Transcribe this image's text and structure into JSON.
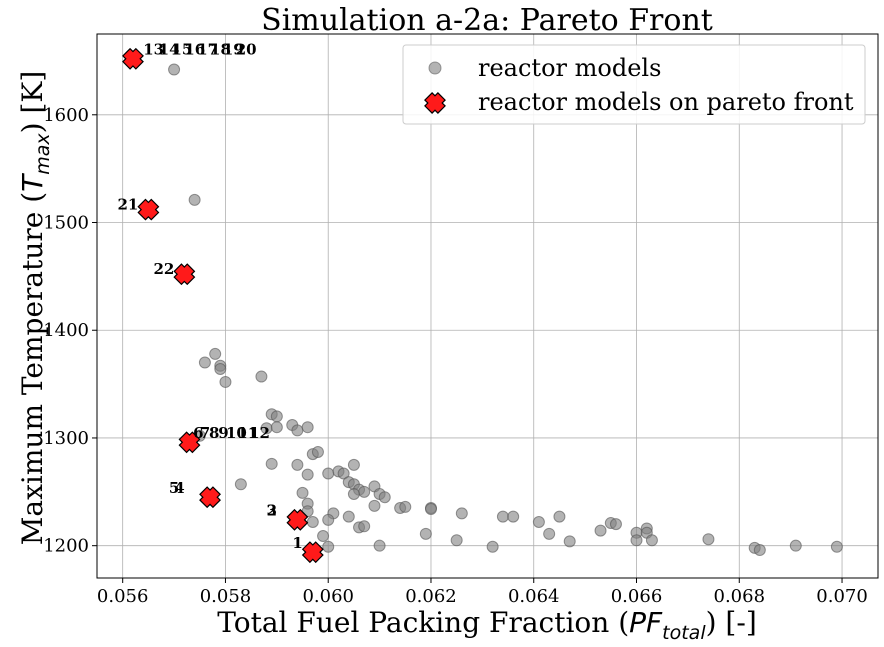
{
  "chart_data": {
    "type": "scatter",
    "title": "Simulation a-2a: Pareto Front",
    "xlabel": "Total Fuel Packing Fraction ($PF_{total}$) [-]",
    "xlabel_parts": {
      "before": "Total Fuel Packing Fraction (",
      "math_base": "PF",
      "math_sub": "total",
      "after": ") [-]"
    },
    "ylabel": "Maximum Temperature ($T_{max}$) [K]",
    "ylabel_parts": {
      "before": "Maximum Temperature (",
      "math_base": "T",
      "math_sub": "max",
      "after": ") [K]"
    },
    "xlim": [
      0.0555,
      0.0707
    ],
    "ylim": [
      1170,
      1675
    ],
    "x_ticks": [
      "0.056",
      "0.058",
      "0.060",
      "0.062",
      "0.064",
      "0.066",
      "0.068",
      "0.070"
    ],
    "x_tick_values": [
      0.056,
      0.058,
      0.06,
      0.062,
      0.064,
      0.066,
      0.068,
      0.07
    ],
    "y_ticks": [
      "1200",
      "1300",
      "1400",
      "1500",
      "1600"
    ],
    "y_tick_values": [
      1200,
      1300,
      1400,
      1500,
      1600
    ],
    "grid": true,
    "legend_position": "top-right",
    "series": [
      {
        "name": "reactor models",
        "color": "#808080",
        "alpha": 0.6,
        "marker": "circle",
        "points": [
          [
            0.057,
            1642
          ],
          [
            0.0574,
            1521
          ],
          [
            0.0576,
            1370
          ],
          [
            0.0578,
            1378
          ],
          [
            0.0579,
            1367
          ],
          [
            0.0579,
            1364
          ],
          [
            0.058,
            1352
          ],
          [
            0.0587,
            1357
          ],
          [
            0.0575,
            1302
          ],
          [
            0.0589,
            1322
          ],
          [
            0.059,
            1320
          ],
          [
            0.0588,
            1309
          ],
          [
            0.059,
            1310
          ],
          [
            0.0593,
            1312
          ],
          [
            0.0594,
            1307
          ],
          [
            0.0596,
            1310
          ],
          [
            0.0597,
            1285
          ],
          [
            0.0598,
            1287
          ],
          [
            0.0589,
            1276
          ],
          [
            0.0594,
            1275
          ],
          [
            0.0596,
            1266
          ],
          [
            0.06,
            1267
          ],
          [
            0.0602,
            1269
          ],
          [
            0.0603,
            1267
          ],
          [
            0.0605,
            1275
          ],
          [
            0.0583,
            1257
          ],
          [
            0.0604,
            1259
          ],
          [
            0.0605,
            1257
          ],
          [
            0.0606,
            1252
          ],
          [
            0.0607,
            1250
          ],
          [
            0.0605,
            1248
          ],
          [
            0.0609,
            1255
          ],
          [
            0.061,
            1248
          ],
          [
            0.0611,
            1245
          ],
          [
            0.0614,
            1235
          ],
          [
            0.0615,
            1236
          ],
          [
            0.0595,
            1249
          ],
          [
            0.0596,
            1239
          ],
          [
            0.0596,
            1232
          ],
          [
            0.0601,
            1230
          ],
          [
            0.0604,
            1227
          ],
          [
            0.06,
            1224
          ],
          [
            0.0597,
            1222
          ],
          [
            0.0606,
            1217
          ],
          [
            0.0607,
            1218
          ],
          [
            0.0609,
            1237
          ],
          [
            0.0599,
            1209
          ],
          [
            0.06,
            1199
          ],
          [
            0.061,
            1200
          ],
          [
            0.0619,
            1211
          ],
          [
            0.062,
            1235
          ],
          [
            0.062,
            1234
          ],
          [
            0.0625,
            1205
          ],
          [
            0.0626,
            1230
          ],
          [
            0.0632,
            1199
          ],
          [
            0.0634,
            1227
          ],
          [
            0.0636,
            1227
          ],
          [
            0.0641,
            1222
          ],
          [
            0.0643,
            1211
          ],
          [
            0.0645,
            1227
          ],
          [
            0.0647,
            1204
          ],
          [
            0.0653,
            1214
          ],
          [
            0.0655,
            1221
          ],
          [
            0.0656,
            1220
          ],
          [
            0.066,
            1212
          ],
          [
            0.066,
            1205
          ],
          [
            0.0662,
            1216
          ],
          [
            0.0662,
            1212
          ],
          [
            0.0663,
            1205
          ],
          [
            0.0674,
            1206
          ],
          [
            0.0683,
            1198
          ],
          [
            0.0684,
            1196
          ],
          [
            0.0691,
            1200
          ],
          [
            0.0699,
            1199
          ]
        ]
      },
      {
        "name": "reactor models on pareto front",
        "color": "#ff1a1a",
        "marker": "X",
        "points": [
          [
            0.0562,
            1652
          ],
          [
            0.0565,
            1512
          ],
          [
            0.0572,
            1452
          ],
          [
            0.0573,
            1296
          ],
          [
            0.0577,
            1245
          ],
          [
            0.0594,
            1224
          ],
          [
            0.0597,
            1194
          ]
        ]
      }
    ],
    "annotations": [
      {
        "text": "13",
        "x": 0.0564,
        "y": 1656
      },
      {
        "text": "14",
        "x": 0.0567,
        "y": 1656
      },
      {
        "text": "15",
        "x": 0.05695,
        "y": 1656
      },
      {
        "text": "16",
        "x": 0.0572,
        "y": 1656
      },
      {
        "text": "17",
        "x": 0.05745,
        "y": 1656
      },
      {
        "text": "18",
        "x": 0.0577,
        "y": 1656
      },
      {
        "text": "19",
        "x": 0.05795,
        "y": 1656
      },
      {
        "text": "20",
        "x": 0.0582,
        "y": 1656
      },
      {
        "text": "21",
        "x": 0.0565,
        "y": 1512,
        "anchor": "end"
      },
      {
        "text": "22",
        "x": 0.0572,
        "y": 1452,
        "anchor": "end"
      },
      {
        "text": "6",
        "x": 0.05737,
        "y": 1300
      },
      {
        "text": "7",
        "x": 0.0575,
        "y": 1300
      },
      {
        "text": "8",
        "x": 0.05768,
        "y": 1300
      },
      {
        "text": "9",
        "x": 0.05786,
        "y": 1300
      },
      {
        "text": "10",
        "x": 0.05801,
        "y": 1300
      },
      {
        "text": "11",
        "x": 0.05823,
        "y": 1300
      },
      {
        "text": "12",
        "x": 0.05846,
        "y": 1300
      },
      {
        "text": "5",
        "x": 0.0569,
        "y": 1249
      },
      {
        "text": "4",
        "x": 0.0574,
        "y": 1249,
        "anchor": "end"
      },
      {
        "text": "3",
        "x": 0.0588,
        "y": 1228
      },
      {
        "text": "2",
        "x": 0.0592,
        "y": 1228,
        "anchor": "end"
      },
      {
        "text": "1",
        "x": 0.0597,
        "y": 1198,
        "anchor": "end"
      }
    ]
  }
}
